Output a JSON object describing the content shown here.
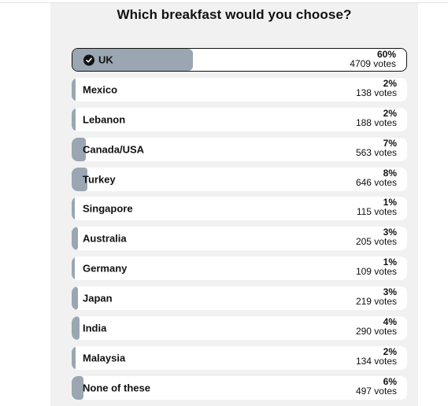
{
  "poll": {
    "title": "Which breakfast would you choose?",
    "options": [
      {
        "label": "UK",
        "percent": "60%",
        "votes": "4709 votes",
        "share": 0.6,
        "selected": true
      },
      {
        "label": "Mexico",
        "percent": "2%",
        "votes": "138 votes",
        "share": 0.02,
        "selected": false
      },
      {
        "label": "Lebanon",
        "percent": "2%",
        "votes": "188 votes",
        "share": 0.02,
        "selected": false
      },
      {
        "label": "Canada/USA",
        "percent": "7%",
        "votes": "563 votes",
        "share": 0.07,
        "selected": false
      },
      {
        "label": "Turkey",
        "percent": "8%",
        "votes": "646 votes",
        "share": 0.08,
        "selected": false
      },
      {
        "label": "Singapore",
        "percent": "1%",
        "votes": "115 votes",
        "share": 0.01,
        "selected": false
      },
      {
        "label": "Australia",
        "percent": "3%",
        "votes": "205 votes",
        "share": 0.03,
        "selected": false
      },
      {
        "label": "Germany",
        "percent": "1%",
        "votes": "109 votes",
        "share": 0.01,
        "selected": false
      },
      {
        "label": "Japan",
        "percent": "3%",
        "votes": "219 votes",
        "share": 0.03,
        "selected": false
      },
      {
        "label": "India",
        "percent": "4%",
        "votes": "290 votes",
        "share": 0.04,
        "selected": false
      },
      {
        "label": "Malaysia",
        "percent": "2%",
        "votes": "134 votes",
        "share": 0.02,
        "selected": false
      },
      {
        "label": "None of these",
        "percent": "6%",
        "votes": "497 votes",
        "share": 0.06,
        "selected": false
      }
    ],
    "selected_icon": "check-circle-icon"
  },
  "colors": {
    "result_bar": "#9aa6b1",
    "panel_background": "#f1f1f1",
    "text": "#121212"
  }
}
